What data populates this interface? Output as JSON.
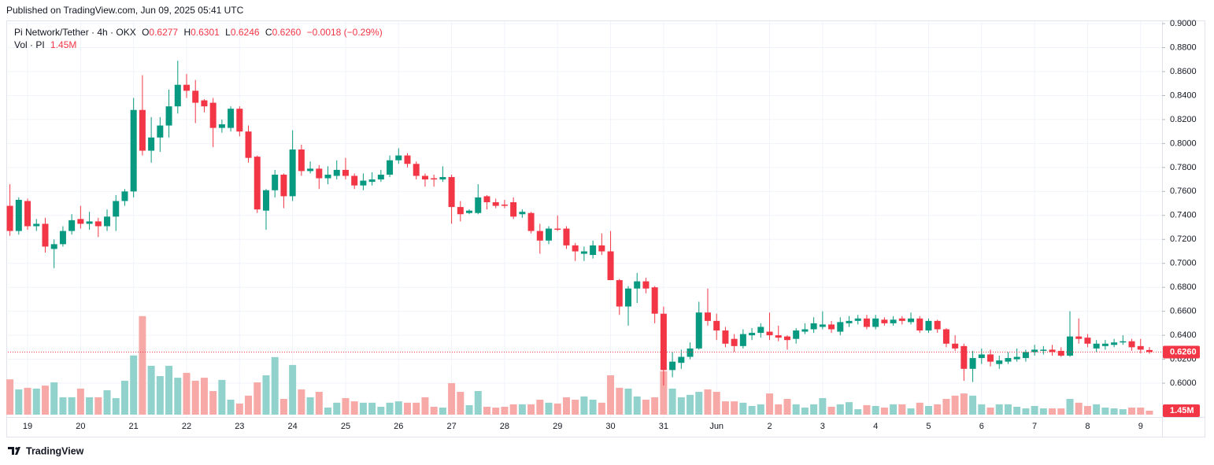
{
  "header": {
    "published": "Published on TradingView.com, Jun 09, 2025 05:41 UTC"
  },
  "footer": {
    "brand": "TradingView"
  },
  "chart_data": {
    "type": "candlestick",
    "symbol": "Pi Network/Tether · 4h · OKX",
    "ohlc_legend": [
      {
        "label": "O",
        "value": "0.6277"
      },
      {
        "label": "H",
        "value": "0.6301"
      },
      {
        "label": "L",
        "value": "0.6246"
      },
      {
        "label": "C",
        "value": "0.6260"
      }
    ],
    "change": "−0.0018 (−0.29%)",
    "categories": [
      null,
      null,
      "19",
      null,
      null,
      null,
      null,
      null,
      "20",
      null,
      null,
      null,
      null,
      null,
      "21",
      null,
      null,
      null,
      null,
      null,
      "22",
      null,
      null,
      null,
      null,
      null,
      "23",
      null,
      null,
      null,
      null,
      null,
      "24",
      null,
      null,
      null,
      null,
      null,
      "25",
      null,
      null,
      null,
      null,
      null,
      "26",
      null,
      null,
      null,
      null,
      null,
      "27",
      null,
      null,
      null,
      null,
      null,
      "28",
      null,
      null,
      null,
      null,
      null,
      "29",
      null,
      null,
      null,
      null,
      null,
      "30",
      null,
      null,
      null,
      null,
      null,
      "31",
      null,
      null,
      null,
      null,
      null,
      "Jun",
      null,
      null,
      null,
      null,
      null,
      "2",
      null,
      null,
      null,
      null,
      null,
      "3",
      null,
      null,
      null,
      null,
      null,
      "4",
      null,
      null,
      null,
      null,
      null,
      "5",
      null,
      null,
      null,
      null,
      null,
      "6",
      null,
      null,
      null,
      null,
      null,
      "7",
      null,
      null,
      null,
      null,
      null,
      "8",
      null,
      null,
      null,
      null,
      null,
      "9",
      null
    ],
    "open": [
      0.748,
      0.727,
      0.752,
      0.731,
      0.733,
      0.712,
      0.716,
      0.727,
      0.737,
      0.733,
      0.735,
      0.731,
      0.739,
      0.752,
      0.76,
      0.828,
      0.794,
      0.805,
      0.815,
      0.831,
      0.849,
      0.844,
      0.836,
      0.834,
      0.813,
      0.813,
      0.829,
      0.81,
      0.789,
      0.744,
      0.761,
      0.774,
      0.756,
      0.795,
      0.777,
      0.779,
      0.771,
      0.773,
      0.778,
      0.773,
      0.765,
      0.768,
      0.77,
      0.774,
      0.786,
      0.79,
      0.783,
      0.773,
      0.771,
      0.77,
      0.772,
      0.747,
      0.742,
      0.742,
      0.756,
      0.751,
      0.749,
      0.751,
      0.741,
      0.742,
      0.727,
      0.719,
      0.729,
      0.729,
      0.715,
      0.708,
      0.707,
      0.715,
      0.71,
      0.686,
      0.664,
      0.679,
      0.685,
      0.68,
      0.658,
      0.611,
      0.617,
      0.622,
      0.629,
      0.659,
      0.652,
      0.644,
      0.637,
      0.631,
      0.64,
      0.642,
      0.643,
      0.64,
      0.639,
      0.637,
      0.643,
      0.645,
      0.647,
      0.649,
      0.643,
      0.65,
      0.652,
      0.654,
      0.647,
      0.653,
      0.65,
      0.654,
      0.651,
      0.654,
      0.644,
      0.652,
      0.645,
      0.633,
      0.631,
      0.612,
      0.621,
      0.624,
      0.616,
      0.618,
      0.62,
      0.621,
      0.626,
      0.627,
      0.628,
      0.627,
      0.623,
      0.639,
      0.638,
      0.629,
      0.631,
      0.632,
      0.634,
      0.635,
      0.631,
      0.6277
    ],
    "high": [
      0.766,
      0.755,
      0.754,
      0.737,
      0.738,
      0.72,
      0.731,
      0.741,
      0.748,
      0.743,
      0.738,
      0.745,
      0.757,
      0.762,
      0.838,
      0.857,
      0.822,
      0.822,
      0.845,
      0.869,
      0.858,
      0.853,
      0.837,
      0.838,
      0.82,
      0.831,
      0.831,
      0.815,
      0.79,
      0.762,
      0.778,
      0.775,
      0.811,
      0.799,
      0.785,
      0.782,
      0.781,
      0.786,
      0.788,
      0.775,
      0.775,
      0.776,
      0.778,
      0.79,
      0.796,
      0.792,
      0.785,
      0.775,
      0.774,
      0.781,
      0.774,
      0.752,
      0.745,
      0.766,
      0.757,
      0.754,
      0.753,
      0.755,
      0.745,
      0.743,
      0.733,
      0.731,
      0.74,
      0.731,
      0.717,
      0.714,
      0.719,
      0.725,
      0.727,
      0.687,
      0.681,
      0.692,
      0.688,
      0.681,
      0.664,
      0.626,
      0.628,
      0.634,
      0.668,
      0.679,
      0.658,
      0.647,
      0.641,
      0.645,
      0.646,
      0.65,
      0.659,
      0.648,
      0.64,
      0.646,
      0.65,
      0.655,
      0.66,
      0.652,
      0.655,
      0.656,
      0.657,
      0.657,
      0.657,
      0.655,
      0.656,
      0.656,
      0.659,
      0.656,
      0.654,
      0.653,
      0.646,
      0.64,
      0.633,
      0.627,
      0.629,
      0.628,
      0.623,
      0.626,
      0.629,
      0.628,
      0.632,
      0.631,
      0.632,
      0.63,
      0.66,
      0.654,
      0.641,
      0.636,
      0.636,
      0.637,
      0.64,
      0.637,
      0.637,
      0.6301
    ],
    "low": [
      0.723,
      0.724,
      0.728,
      0.727,
      0.709,
      0.696,
      0.714,
      0.724,
      0.729,
      0.728,
      0.722,
      0.727,
      0.727,
      0.748,
      0.755,
      0.79,
      0.784,
      0.793,
      0.805,
      0.825,
      0.838,
      0.817,
      0.826,
      0.797,
      0.809,
      0.81,
      0.806,
      0.784,
      0.742,
      0.728,
      0.755,
      0.746,
      0.752,
      0.773,
      0.775,
      0.762,
      0.766,
      0.77,
      0.77,
      0.762,
      0.761,
      0.765,
      0.768,
      0.772,
      0.783,
      0.78,
      0.77,
      0.764,
      0.764,
      0.768,
      0.733,
      0.735,
      0.741,
      0.741,
      0.745,
      0.746,
      0.746,
      0.737,
      0.738,
      0.725,
      0.708,
      0.716,
      0.727,
      0.712,
      0.702,
      0.702,
      0.704,
      0.707,
      0.686,
      0.657,
      0.648,
      0.667,
      0.675,
      0.65,
      0.598,
      0.605,
      0.612,
      0.62,
      0.628,
      0.648,
      0.636,
      0.63,
      0.626,
      0.629,
      0.636,
      0.638,
      0.636,
      0.635,
      0.628,
      0.633,
      0.641,
      0.642,
      0.645,
      0.642,
      0.64,
      0.647,
      0.649,
      0.645,
      0.645,
      0.648,
      0.648,
      0.649,
      0.649,
      0.642,
      0.642,
      0.642,
      0.63,
      0.627,
      0.602,
      0.601,
      0.616,
      0.614,
      0.612,
      0.616,
      0.618,
      0.618,
      0.623,
      0.624,
      0.623,
      0.622,
      0.622,
      0.633,
      0.63,
      0.626,
      0.628,
      0.63,
      0.632,
      0.627,
      0.625,
      0.6246
    ],
    "close": [
      0.727,
      0.753,
      0.731,
      0.733,
      0.714,
      0.716,
      0.727,
      0.736,
      0.733,
      0.735,
      0.731,
      0.739,
      0.752,
      0.76,
      0.828,
      0.794,
      0.805,
      0.815,
      0.831,
      0.849,
      0.844,
      0.834,
      0.831,
      0.813,
      0.816,
      0.829,
      0.81,
      0.788,
      0.745,
      0.761,
      0.774,
      0.756,
      0.795,
      0.777,
      0.779,
      0.771,
      0.774,
      0.778,
      0.773,
      0.765,
      0.769,
      0.77,
      0.774,
      0.786,
      0.79,
      0.783,
      0.773,
      0.77,
      0.77,
      0.772,
      0.747,
      0.741,
      0.744,
      0.755,
      0.751,
      0.748,
      0.748,
      0.739,
      0.743,
      0.727,
      0.719,
      0.729,
      0.728,
      0.715,
      0.71,
      0.71,
      0.715,
      0.71,
      0.686,
      0.664,
      0.679,
      0.685,
      0.679,
      0.658,
      0.611,
      0.618,
      0.622,
      0.629,
      0.659,
      0.652,
      0.644,
      0.633,
      0.631,
      0.641,
      0.642,
      0.647,
      0.64,
      0.638,
      0.636,
      0.644,
      0.645,
      0.65,
      0.649,
      0.645,
      0.651,
      0.652,
      0.654,
      0.647,
      0.654,
      0.65,
      0.653,
      0.652,
      0.654,
      0.644,
      0.652,
      0.645,
      0.633,
      0.629,
      0.612,
      0.621,
      0.624,
      0.618,
      0.619,
      0.621,
      0.622,
      0.626,
      0.628,
      0.628,
      0.626,
      0.623,
      0.639,
      0.637,
      0.633,
      0.633,
      0.633,
      0.634,
      0.635,
      0.63,
      0.628,
      0.626
    ],
    "up_color": "#089981",
    "down_color": "#f23645",
    "ylim": [
      0.5554,
      0.902
    ],
    "yticks": [
      {
        "value": 0.6,
        "label": "0.6000"
      },
      {
        "value": 0.62,
        "label": "0.6200"
      },
      {
        "value": 0.64,
        "label": "0.6400"
      },
      {
        "value": 0.66,
        "label": "0.6600"
      },
      {
        "value": 0.68,
        "label": "0.6800"
      },
      {
        "value": 0.7,
        "label": "0.7000"
      },
      {
        "value": 0.72,
        "label": "0.7200"
      },
      {
        "value": 0.74,
        "label": "0.7400"
      },
      {
        "value": 0.76,
        "label": "0.7600"
      },
      {
        "value": 0.78,
        "label": "0.7800"
      },
      {
        "value": 0.8,
        "label": "0.8000"
      },
      {
        "value": 0.82,
        "label": "0.8200"
      },
      {
        "value": 0.84,
        "label": "0.8400"
      },
      {
        "value": 0.86,
        "label": "0.8600"
      },
      {
        "value": 0.88,
        "label": "0.8800"
      },
      {
        "value": 0.9,
        "label": "0.9000"
      }
    ],
    "grid": true,
    "last_price_label": "0.6260",
    "volume": {
      "name": "Vol · PI",
      "last_label": "1.45M",
      "up_color": "#92d2cc",
      "down_color": "#f7a9a7",
      "vlim": [
        0,
        100
      ],
      "values": [
        13.0,
        9.3,
        9.9,
        9.6,
        10.7,
        11.9,
        6.4,
        6.4,
        9.6,
        6.4,
        6.4,
        9.0,
        6.1,
        12.5,
        21.8,
        36.3,
        18.0,
        14.2,
        18.0,
        13.6,
        15.4,
        12.5,
        13.6,
        8.7,
        12.8,
        5.5,
        4.1,
        7.0,
        11.9,
        14.5,
        21.2,
        5.8,
        18.3,
        9.3,
        6.4,
        8.4,
        2.6,
        4.4,
        6.1,
        4.9,
        4.4,
        4.4,
        2.9,
        4.4,
        4.9,
        4.4,
        4.4,
        6.4,
        2.9,
        2.6,
        11.6,
        8.4,
        3.5,
        8.7,
        2.9,
        2.6,
        2.9,
        3.8,
        3.8,
        3.8,
        5.5,
        4.4,
        4.1,
        6.4,
        5.5,
        6.7,
        5.5,
        4.4,
        14.5,
        9.9,
        9.6,
        6.7,
        5.5,
        6.4,
        16.0,
        9.6,
        6.4,
        7.3,
        8.4,
        9.3,
        8.4,
        4.9,
        4.9,
        4.4,
        3.2,
        3.8,
        7.8,
        3.8,
        5.8,
        3.8,
        2.6,
        3.8,
        6.1,
        2.9,
        3.8,
        4.6,
        2.0,
        3.5,
        3.2,
        2.6,
        3.8,
        3.8,
        2.3,
        4.4,
        3.2,
        3.8,
        5.8,
        7.0,
        7.8,
        7.0,
        3.8,
        2.6,
        3.8,
        3.8,
        2.9,
        2.3,
        3.2,
        2.3,
        2.3,
        2.3,
        5.8,
        4.4,
        3.2,
        3.8,
        2.6,
        2.3,
        2.0,
        2.6,
        2.6,
        1.45
      ]
    }
  }
}
